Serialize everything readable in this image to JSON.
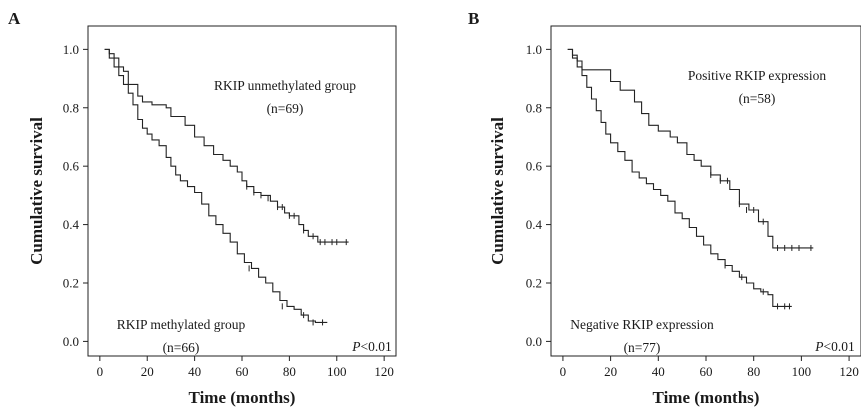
{
  "chart_data": [
    {
      "type": "line",
      "panel_label": "A",
      "xlabel": "Time (months)",
      "ylabel": "Cumulative survival",
      "xlim": [
        -5,
        125
      ],
      "ylim": [
        -0.05,
        1.08
      ],
      "xticks": [
        0,
        20,
        40,
        60,
        80,
        100,
        120
      ],
      "yticks": [
        0.0,
        0.2,
        0.4,
        0.6,
        0.8,
        1.0
      ],
      "grid": false,
      "annotations": [
        {
          "lines": [
            "RKIP unmethylated group",
            "(n=69)"
          ]
        },
        {
          "lines": [
            "RKIP methylated group",
            "(n=66)"
          ]
        },
        {
          "p_label": "P",
          "p_rest": "<0.01"
        }
      ],
      "series": [
        {
          "name": "RKIP unmethylated group (n=69)",
          "x": [
            2,
            4,
            6,
            8,
            10,
            12,
            16,
            18,
            22,
            28,
            30,
            36,
            40,
            44,
            48,
            52,
            55,
            58,
            60,
            62,
            65,
            68,
            72,
            75,
            78,
            80,
            84,
            86,
            88,
            92,
            105
          ],
          "y": [
            1.0,
            0.985,
            0.97,
            0.94,
            0.925,
            0.88,
            0.84,
            0.82,
            0.81,
            0.8,
            0.77,
            0.74,
            0.7,
            0.67,
            0.64,
            0.62,
            0.6,
            0.58,
            0.55,
            0.53,
            0.51,
            0.5,
            0.48,
            0.46,
            0.44,
            0.43,
            0.4,
            0.38,
            0.36,
            0.34,
            0.34
          ],
          "censored_x": [
            62,
            65,
            68,
            71,
            75,
            77,
            80,
            82,
            86,
            90,
            93,
            95,
            98,
            100,
            104
          ],
          "censored_y": [
            0.53,
            0.51,
            0.5,
            0.49,
            0.46,
            0.46,
            0.43,
            0.43,
            0.38,
            0.36,
            0.34,
            0.34,
            0.34,
            0.34,
            0.34
          ]
        },
        {
          "name": "RKIP methylated group (n=66)",
          "x": [
            2,
            4,
            6,
            8,
            10,
            12,
            14,
            16,
            18,
            20,
            22,
            25,
            28,
            30,
            32,
            34,
            37,
            40,
            43,
            46,
            49,
            52,
            55,
            58,
            61,
            64,
            67,
            70,
            73,
            76,
            79,
            82,
            85,
            88,
            91,
            96
          ],
          "y": [
            1.0,
            0.97,
            0.94,
            0.91,
            0.88,
            0.85,
            0.81,
            0.76,
            0.73,
            0.71,
            0.69,
            0.67,
            0.63,
            0.6,
            0.57,
            0.55,
            0.53,
            0.51,
            0.47,
            0.43,
            0.4,
            0.37,
            0.34,
            0.3,
            0.27,
            0.25,
            0.22,
            0.2,
            0.17,
            0.14,
            0.12,
            0.11,
            0.09,
            0.07,
            0.065,
            0.065
          ],
          "censored_x": [
            63,
            77,
            86,
            90,
            94
          ],
          "censored_y": [
            0.25,
            0.12,
            0.09,
            0.065,
            0.065
          ]
        }
      ]
    },
    {
      "type": "line",
      "panel_label": "B",
      "xlabel": "Time (months)",
      "ylabel": "Cumulative survival",
      "xlim": [
        -5,
        125
      ],
      "ylim": [
        -0.05,
        1.08
      ],
      "xticks": [
        0,
        20,
        40,
        60,
        80,
        100,
        120
      ],
      "yticks": [
        0.0,
        0.2,
        0.4,
        0.6,
        0.8,
        1.0
      ],
      "grid": false,
      "annotations": [
        {
          "lines": [
            "Positive RKIP expression",
            "(n=58)"
          ]
        },
        {
          "lines": [
            "Negative RKIP expression",
            "(n=77)"
          ]
        },
        {
          "p_label": "P",
          "p_rest": "<0.01"
        }
      ],
      "series": [
        {
          "name": "Positive RKIP expression (n=58)",
          "x": [
            2,
            4,
            6,
            8,
            20,
            24,
            30,
            33,
            36,
            40,
            45,
            48,
            52,
            55,
            58,
            62,
            66,
            70,
            74,
            78,
            82,
            86,
            88,
            105
          ],
          "y": [
            1.0,
            0.98,
            0.96,
            0.93,
            0.89,
            0.86,
            0.82,
            0.78,
            0.74,
            0.72,
            0.7,
            0.68,
            0.64,
            0.62,
            0.6,
            0.57,
            0.55,
            0.52,
            0.47,
            0.45,
            0.41,
            0.36,
            0.32,
            0.32
          ],
          "censored_x": [
            62,
            66,
            69,
            74,
            77,
            80,
            84,
            90,
            93,
            96,
            99,
            104
          ],
          "censored_y": [
            0.57,
            0.55,
            0.55,
            0.47,
            0.45,
            0.45,
            0.41,
            0.32,
            0.32,
            0.32,
            0.32,
            0.32
          ]
        },
        {
          "name": "Negative RKIP expression (n=77)",
          "x": [
            2,
            4,
            6,
            8,
            10,
            12,
            14,
            16,
            18,
            20,
            23,
            26,
            29,
            32,
            35,
            38,
            41,
            44,
            47,
            50,
            53,
            56,
            59,
            62,
            65,
            68,
            71,
            74,
            77,
            80,
            83,
            86,
            88,
            96
          ],
          "y": [
            1.0,
            0.97,
            0.94,
            0.91,
            0.87,
            0.83,
            0.79,
            0.75,
            0.71,
            0.68,
            0.65,
            0.62,
            0.58,
            0.56,
            0.54,
            0.52,
            0.5,
            0.48,
            0.44,
            0.42,
            0.39,
            0.36,
            0.33,
            0.3,
            0.28,
            0.26,
            0.24,
            0.22,
            0.2,
            0.18,
            0.17,
            0.16,
            0.12,
            0.12
          ],
          "censored_x": [
            68,
            75,
            84,
            90,
            93,
            95
          ],
          "censored_y": [
            0.26,
            0.22,
            0.17,
            0.12,
            0.12,
            0.12
          ]
        }
      ]
    }
  ]
}
